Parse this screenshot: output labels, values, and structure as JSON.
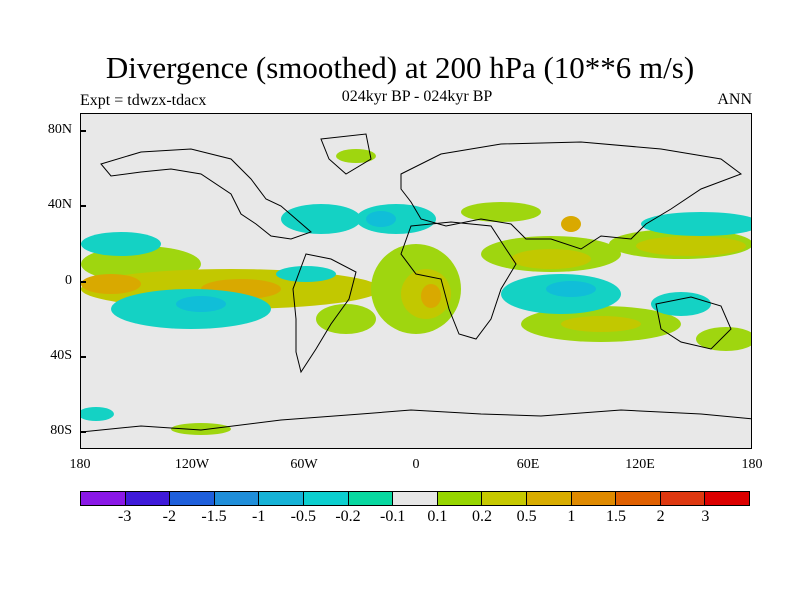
{
  "title": "Divergence (smoothed) at 200 hPa (10**6 m/s)",
  "experiment": "Expt = tdwzx-tdacx",
  "period": "024kyr BP - 024kyr BP",
  "season": "ANN",
  "lat_labels": [
    "80N",
    "40N",
    "0",
    "40S",
    "80S"
  ],
  "lon_labels": [
    "180",
    "120W",
    "60W",
    "0",
    "60E",
    "120E",
    "180"
  ],
  "colorbar": {
    "colors": [
      "#8a18e6",
      "#3f1ad9",
      "#1e5fdb",
      "#1f8ed9",
      "#16b2d6",
      "#0ccfcf",
      "#08d8a0",
      "#e6e6e6",
      "#96d500",
      "#c6c800",
      "#d8ac00",
      "#df8a00",
      "#e06000",
      "#de3810",
      "#dc0000"
    ],
    "labels": [
      "-3",
      "-2",
      "-1.5",
      "-1",
      "-0.5",
      "-0.2",
      "-0.1",
      "0.1",
      "0.2",
      "0.5",
      "1",
      "1.5",
      "2",
      "3"
    ]
  },
  "palette": {
    "background": "#e8e8e8",
    "green": "#9fd60f",
    "yellowgreen": "#c2c800",
    "orange": "#d9a900",
    "teal": "#14d2c4",
    "cyan": "#10bed8",
    "coast": "#000000"
  }
}
